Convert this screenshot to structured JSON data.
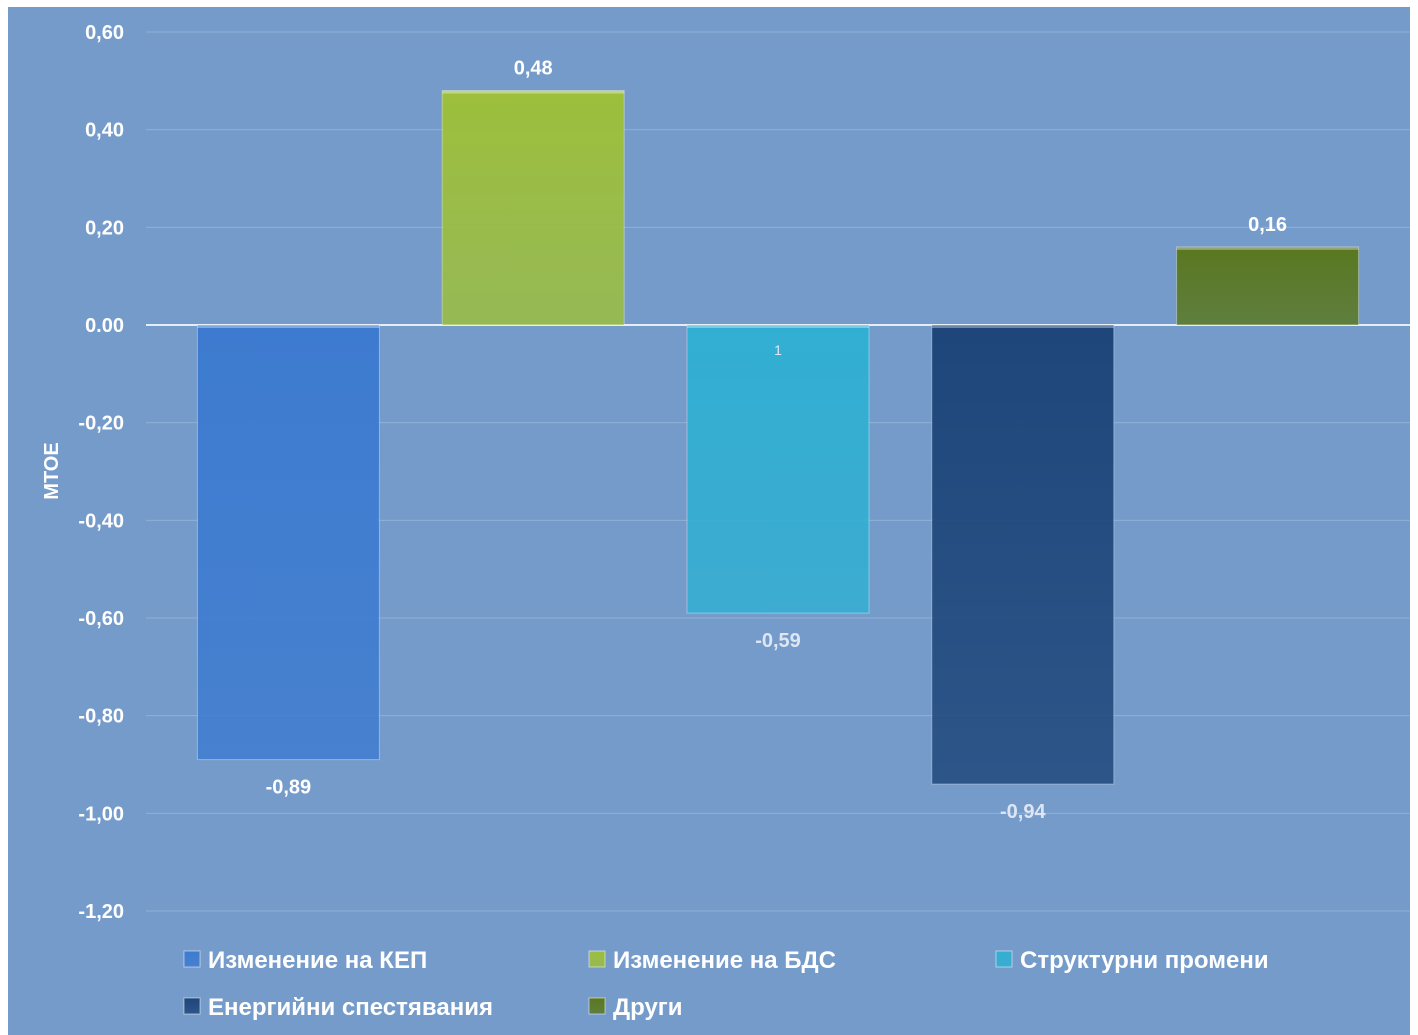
{
  "chart_data": {
    "type": "bar",
    "title": "",
    "xlabel": "",
    "ylabel": "MTOE",
    "ylim": [
      -1.2,
      0.6
    ],
    "ytick_values": [
      0.6,
      0.4,
      0.2,
      0.0,
      -0.2,
      -0.4,
      -0.6,
      -0.8,
      -1.0,
      -1.2
    ],
    "ytick_labels": [
      "0,60",
      "0,40",
      "0,20",
      "0.00",
      "-0,20",
      "-0,40",
      "-0,60",
      "-0,80",
      "-1,00",
      "-1,20"
    ],
    "grid": true,
    "legend_position": "bottom",
    "categories": [
      "Изменение на КЕП",
      "Изменение на БДС",
      "Структурни промени",
      "Енергийни спестявания",
      "Други"
    ],
    "values": [
      -0.89,
      0.48,
      -0.59,
      -0.94,
      0.16
    ],
    "data_labels": [
      "-0,89",
      "0,48",
      "-0,59",
      "-0,94",
      "0,16"
    ],
    "extra_label": "1",
    "colors": [
      "#3d7bd0",
      "#9dbf3c",
      "#31afd2",
      "#1e467a",
      "#5a7820"
    ],
    "label_colors": [
      "#ffffff",
      "#ffffff",
      "#dde6f2",
      "#dde6f2",
      "#ffffff"
    ],
    "background": "#759bca"
  }
}
